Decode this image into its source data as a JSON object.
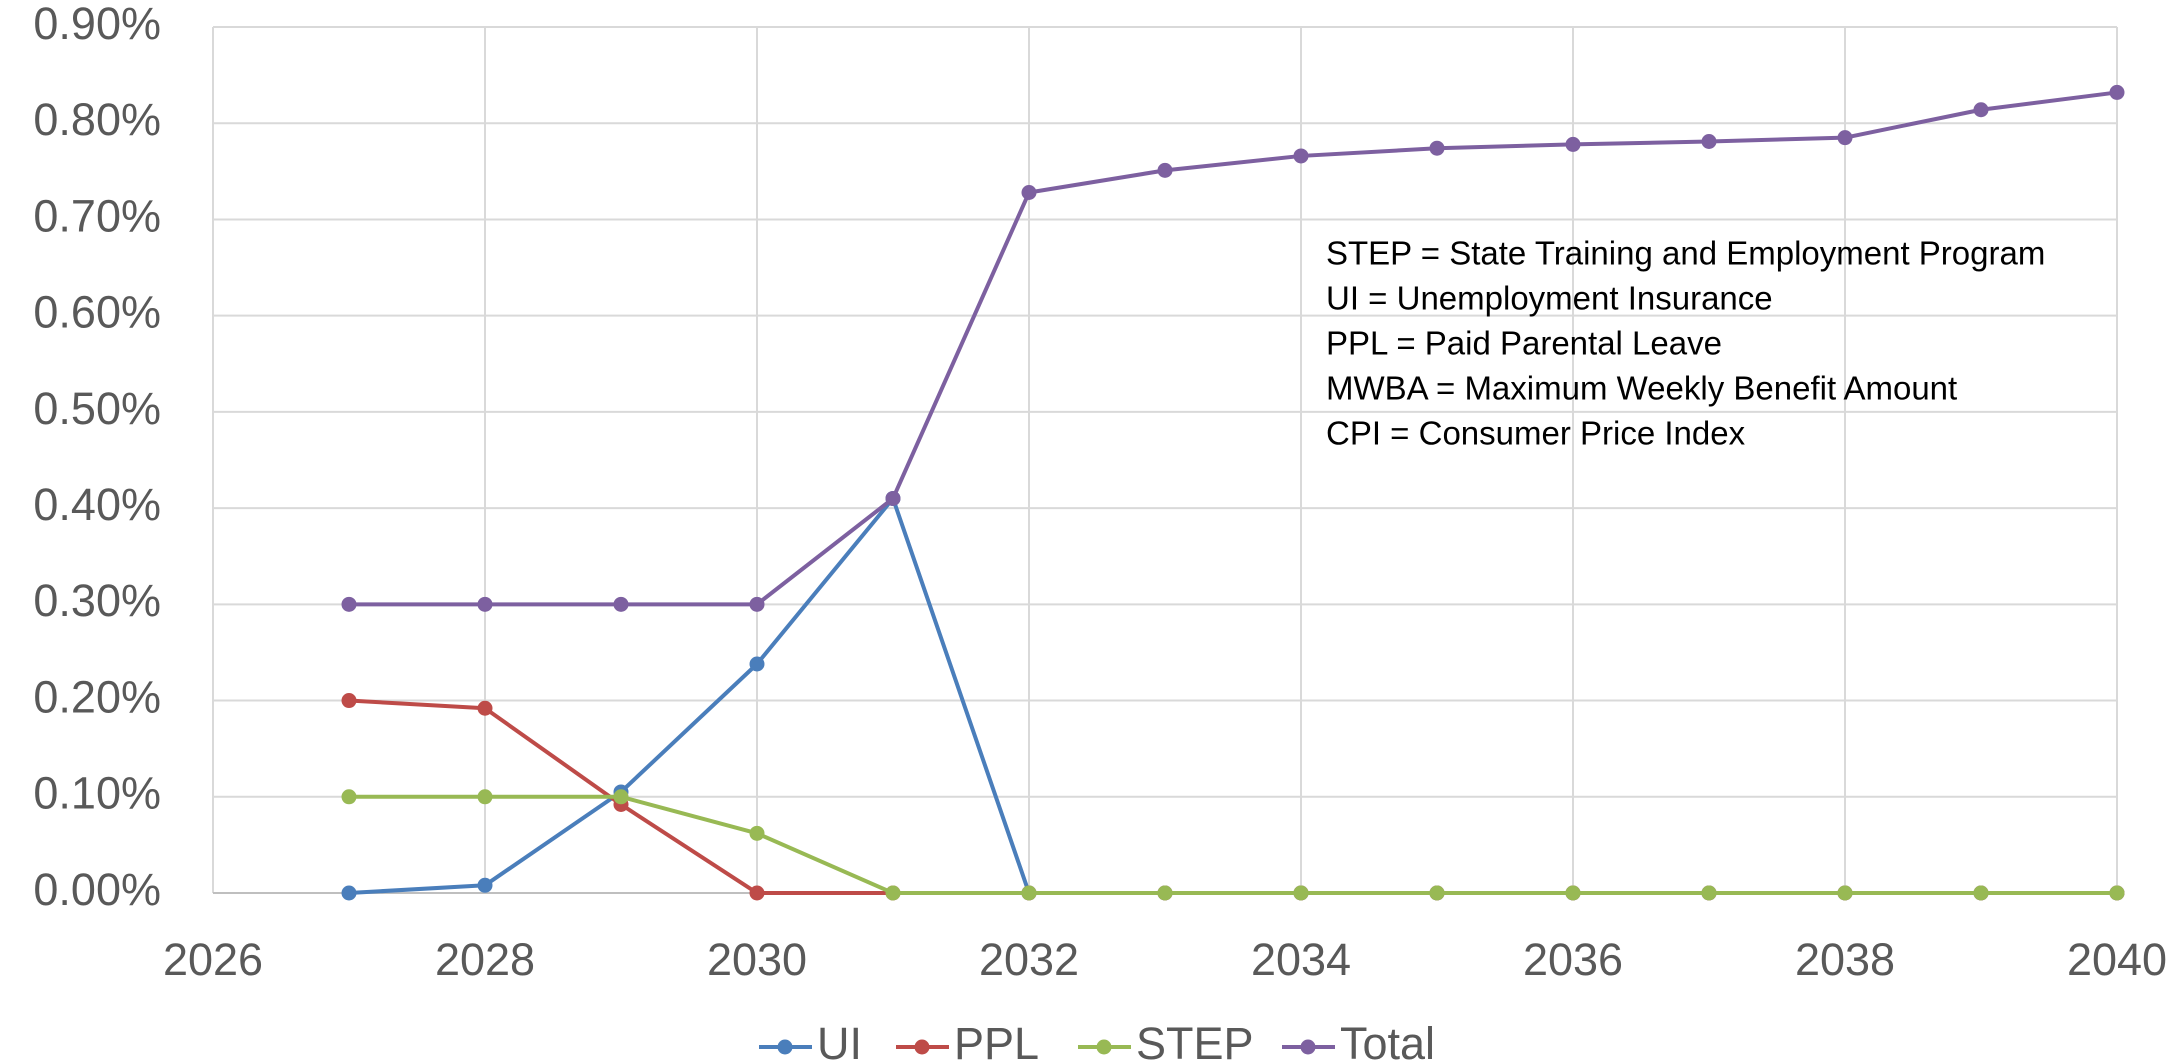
{
  "chart_data": {
    "type": "line",
    "x": [
      2027,
      2028,
      2029,
      2030,
      2031,
      2032,
      2033,
      2034,
      2035,
      2036,
      2037,
      2038,
      2039,
      2040
    ],
    "series": [
      {
        "name": "UI",
        "color": "#4a7ebb",
        "values": [
          0,
          0.008,
          0.105,
          0.238,
          0.41,
          0,
          0,
          0,
          0,
          0,
          0,
          0,
          0,
          0
        ]
      },
      {
        "name": "PPL",
        "color": "#be4b48",
        "values": [
          0.2,
          0.192,
          0.092,
          0,
          0,
          0,
          0,
          0,
          0,
          0,
          0,
          0,
          0,
          0
        ]
      },
      {
        "name": "STEP",
        "color": "#98b954",
        "values": [
          0.1,
          0.1,
          0.1,
          0.062,
          0,
          0,
          0,
          0,
          0,
          0,
          0,
          0,
          0,
          0
        ]
      },
      {
        "name": "Total",
        "color": "#7d60a0",
        "values": [
          0.3,
          0.3,
          0.3,
          0.3,
          0.41,
          0.728,
          0.751,
          0.766,
          0.774,
          0.778,
          0.781,
          0.785,
          0.814,
          0.832
        ]
      }
    ],
    "xlim": [
      2026,
      2040
    ],
    "xticks": [
      2026,
      2028,
      2030,
      2032,
      2034,
      2036,
      2038,
      2040
    ],
    "ylim": [
      0,
      0.9
    ],
    "yticks": [
      {
        "value": 0,
        "label": "0.00%"
      },
      {
        "value": 0.1,
        "label": "0.10%"
      },
      {
        "value": 0.2,
        "label": "0.20%"
      },
      {
        "value": 0.3,
        "label": "0.30%"
      },
      {
        "value": 0.4,
        "label": "0.40%"
      },
      {
        "value": 0.5,
        "label": "0.50%"
      },
      {
        "value": 0.6,
        "label": "0.60%"
      },
      {
        "value": 0.7,
        "label": "0.70%"
      },
      {
        "value": 0.8,
        "label": "0.80%"
      },
      {
        "value": 0.9,
        "label": "0.90%"
      }
    ],
    "grid": true,
    "legend": "bottom",
    "annotations": [
      "STEP = State Training and Employment Program",
      "UI = Unemployment Insurance",
      "PPL = Paid Parental Leave",
      "MWBA = Maximum Weekly Benefit Amount",
      "CPI = Consumer Price Index"
    ]
  }
}
